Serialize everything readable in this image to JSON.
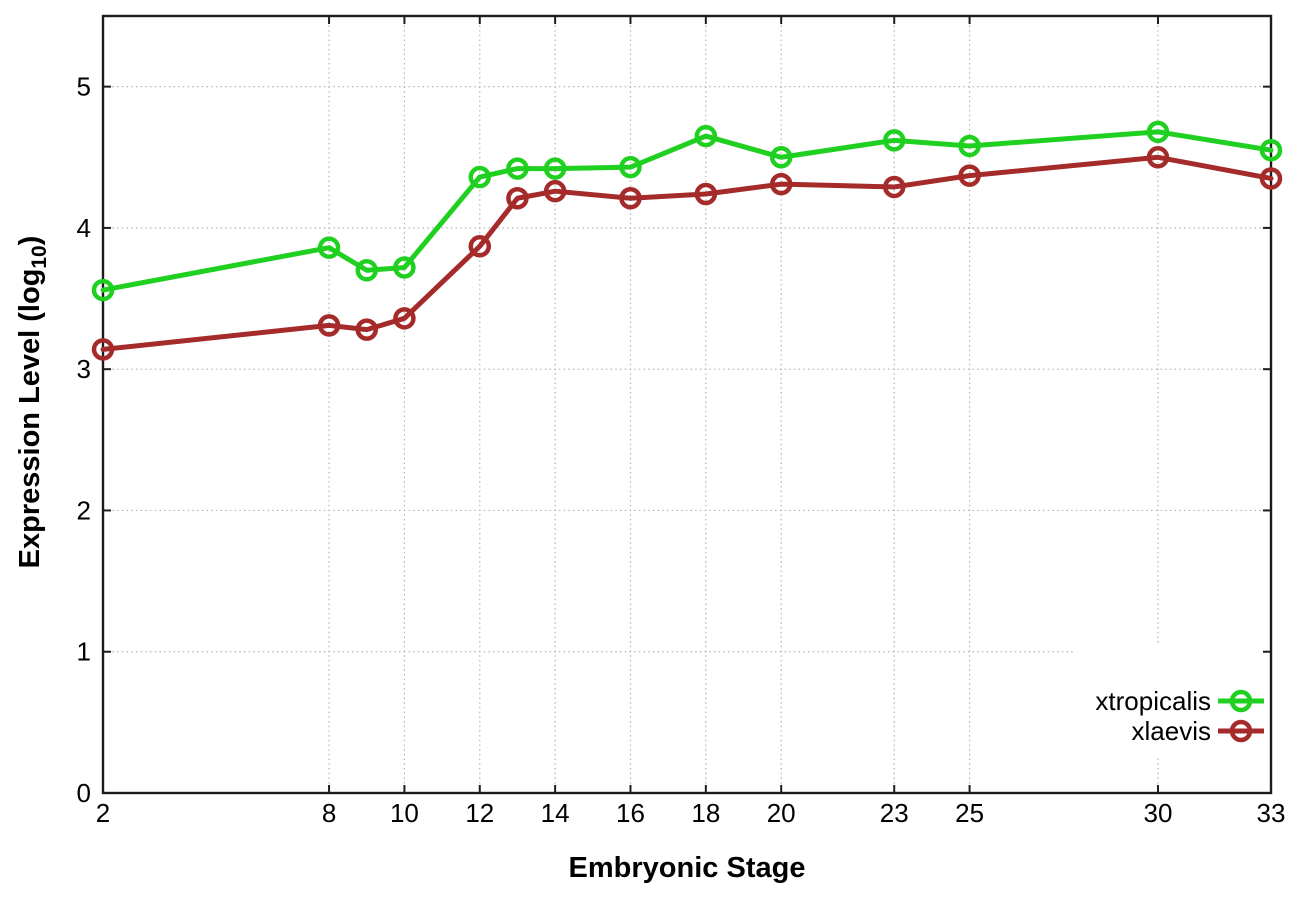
{
  "chart_data": {
    "type": "line",
    "title": "",
    "xlabel": "Embryonic Stage",
    "ylabel": "Expression Level (log10)",
    "ylabel_parts": {
      "main": "Expression Level (log",
      "sub": "10",
      "end": ")"
    },
    "x": [
      2,
      8,
      9,
      10,
      12,
      13,
      14,
      16,
      18,
      20,
      23,
      25,
      30,
      33
    ],
    "series": [
      {
        "name": "xtropicalis",
        "color": "#20d020",
        "values": [
          3.56,
          3.86,
          3.7,
          3.72,
          4.36,
          4.42,
          4.42,
          4.43,
          4.65,
          4.5,
          4.62,
          4.58,
          4.68,
          4.55
        ]
      },
      {
        "name": "xlaevis",
        "color": "#a52a2a",
        "values": [
          3.14,
          3.31,
          3.28,
          3.36,
          3.87,
          4.21,
          4.26,
          4.21,
          4.24,
          4.31,
          4.29,
          4.37,
          4.5,
          4.35
        ]
      }
    ],
    "xlim": [
      2,
      33
    ],
    "ylim": [
      0,
      5.5
    ],
    "x_ticks": [
      2,
      8,
      10,
      12,
      14,
      16,
      18,
      20,
      23,
      25,
      30,
      33
    ],
    "y_ticks": [
      0,
      1,
      2,
      3,
      4,
      5
    ],
    "grid": true,
    "legend_position": "inside-right-bottom",
    "marker": "open-circle"
  },
  "colors": {
    "background": "#ffffff",
    "plot_border": "#1c1c1c",
    "gridline": "#b4b4b4",
    "text": "#000000",
    "series_xtropicalis": "#20d020",
    "series_xlaevis": "#a52a2a"
  }
}
